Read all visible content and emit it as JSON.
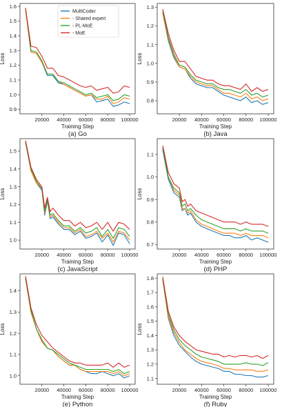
{
  "figure": {
    "legend": {
      "entries": [
        {
          "name": "MultiCoder",
          "color": "#1f77b4"
        },
        {
          "name": "- Shared expert",
          "color": "#ff7f0e"
        },
        {
          "name": "- PL-MoE",
          "color": "#2ca02c"
        },
        {
          "name": "- MoE",
          "color": "#d62728"
        }
      ]
    }
  },
  "chart_data": [
    {
      "type": "line",
      "caption": "(a) Go",
      "xlabel": "Training Step",
      "ylabel": "Loss",
      "xlim": [
        0,
        105000
      ],
      "ylim": [
        0.87,
        1.62
      ],
      "xticks": [
        20000,
        40000,
        60000,
        80000,
        100000
      ],
      "yticks": [
        0.9,
        1.0,
        1.1,
        1.2,
        1.3,
        1.4,
        1.5,
        1.6
      ],
      "x": [
        5000,
        10000,
        15000,
        20000,
        25000,
        30000,
        35000,
        40000,
        45000,
        50000,
        55000,
        60000,
        65000,
        70000,
        75000,
        80000,
        85000,
        90000,
        95000,
        100000
      ],
      "series": [
        {
          "name": "MultiCoder",
          "color": "#1f77b4",
          "values": [
            1.58,
            1.29,
            1.28,
            1.22,
            1.13,
            1.13,
            1.08,
            1.07,
            1.05,
            1.03,
            1.01,
            0.99,
            1.0,
            0.95,
            0.96,
            0.97,
            0.92,
            0.93,
            0.95,
            0.94
          ]
        },
        {
          "name": "- Shared expert",
          "color": "#ff7f0e",
          "values": [
            1.58,
            1.29,
            1.28,
            1.22,
            1.14,
            1.14,
            1.09,
            1.07,
            1.05,
            1.03,
            1.01,
            0.99,
            1.0,
            0.97,
            0.97,
            0.99,
            0.94,
            0.95,
            0.98,
            0.97
          ]
        },
        {
          "name": "- PL-MoE",
          "color": "#2ca02c",
          "values": [
            1.59,
            1.3,
            1.29,
            1.23,
            1.14,
            1.14,
            1.09,
            1.08,
            1.06,
            1.04,
            1.02,
            1.0,
            1.01,
            0.98,
            0.99,
            1.0,
            0.96,
            0.97,
            1.0,
            0.99
          ]
        },
        {
          "name": "- MoE",
          "color": "#d62728",
          "values": [
            1.59,
            1.33,
            1.32,
            1.26,
            1.18,
            1.18,
            1.13,
            1.12,
            1.1,
            1.08,
            1.06,
            1.05,
            1.06,
            1.03,
            1.04,
            1.05,
            1.01,
            1.02,
            1.06,
            1.05
          ]
        }
      ]
    },
    {
      "type": "line",
      "caption": "(b) Java",
      "xlabel": "Training Step",
      "ylabel": "Loss",
      "xlim": [
        0,
        105000
      ],
      "ylim": [
        0.73,
        1.32
      ],
      "xticks": [
        20000,
        40000,
        60000,
        80000,
        100000
      ],
      "yticks": [
        0.8,
        0.9,
        1.0,
        1.1,
        1.2,
        1.3
      ],
      "x": [
        5000,
        10000,
        15000,
        20000,
        25000,
        30000,
        35000,
        40000,
        45000,
        50000,
        55000,
        60000,
        65000,
        70000,
        75000,
        80000,
        85000,
        90000,
        95000,
        100000
      ],
      "series": [
        {
          "name": "MultiCoder",
          "color": "#1f77b4",
          "values": [
            1.27,
            1.12,
            1.03,
            0.98,
            0.97,
            0.92,
            0.89,
            0.88,
            0.87,
            0.87,
            0.85,
            0.83,
            0.82,
            0.81,
            0.8,
            0.82,
            0.79,
            0.8,
            0.78,
            0.79
          ]
        },
        {
          "name": "- Shared expert",
          "color": "#ff7f0e",
          "values": [
            1.27,
            1.13,
            1.04,
            0.98,
            0.97,
            0.93,
            0.9,
            0.89,
            0.88,
            0.88,
            0.86,
            0.84,
            0.84,
            0.83,
            0.82,
            0.84,
            0.81,
            0.82,
            0.8,
            0.81
          ]
        },
        {
          "name": "- PL-MoE",
          "color": "#2ca02c",
          "values": [
            1.28,
            1.14,
            1.05,
            0.99,
            0.98,
            0.94,
            0.91,
            0.9,
            0.89,
            0.89,
            0.87,
            0.86,
            0.86,
            0.85,
            0.84,
            0.86,
            0.83,
            0.84,
            0.82,
            0.83
          ]
        },
        {
          "name": "- MoE",
          "color": "#d62728",
          "values": [
            1.29,
            1.16,
            1.07,
            1.01,
            1.01,
            0.97,
            0.93,
            0.92,
            0.91,
            0.91,
            0.89,
            0.88,
            0.88,
            0.87,
            0.86,
            0.89,
            0.85,
            0.87,
            0.85,
            0.86
          ]
        }
      ]
    },
    {
      "type": "line",
      "caption": "(c) JavaScript",
      "xlabel": "Training Step",
      "ylabel": "Loss",
      "xlim": [
        0,
        105000
      ],
      "ylim": [
        0.95,
        1.57
      ],
      "xticks": [
        20000,
        40000,
        60000,
        80000,
        100000
      ],
      "yticks": [
        1.0,
        1.1,
        1.2,
        1.3,
        1.4,
        1.5
      ],
      "x": [
        5000,
        10000,
        15000,
        20000,
        22500,
        25000,
        27500,
        30000,
        35000,
        40000,
        45000,
        50000,
        55000,
        60000,
        65000,
        70000,
        75000,
        80000,
        85000,
        90000,
        95000,
        100000
      ],
      "series": [
        {
          "name": "MultiCoder",
          "color": "#1f77b4",
          "values": [
            1.55,
            1.39,
            1.32,
            1.28,
            1.14,
            1.22,
            1.12,
            1.13,
            1.09,
            1.06,
            1.06,
            1.03,
            1.05,
            1.01,
            1.02,
            1.04,
            0.99,
            1.03,
            0.97,
            1.04,
            1.03,
            0.98
          ]
        },
        {
          "name": "- Shared expert",
          "color": "#ff7f0e",
          "values": [
            1.55,
            1.39,
            1.32,
            1.29,
            1.15,
            1.23,
            1.13,
            1.14,
            1.1,
            1.07,
            1.07,
            1.04,
            1.06,
            1.02,
            1.03,
            1.05,
            1.01,
            1.04,
            0.99,
            1.05,
            1.04,
            1.0
          ]
        },
        {
          "name": "- PL-MoE",
          "color": "#2ca02c",
          "values": [
            1.55,
            1.4,
            1.33,
            1.29,
            1.16,
            1.23,
            1.14,
            1.15,
            1.11,
            1.08,
            1.08,
            1.05,
            1.07,
            1.04,
            1.05,
            1.07,
            1.02,
            1.06,
            1.01,
            1.07,
            1.06,
            1.02
          ]
        },
        {
          "name": "- MoE",
          "color": "#d62728",
          "values": [
            1.56,
            1.41,
            1.34,
            1.3,
            1.18,
            1.24,
            1.16,
            1.18,
            1.14,
            1.11,
            1.11,
            1.08,
            1.1,
            1.07,
            1.08,
            1.1,
            1.06,
            1.1,
            1.05,
            1.1,
            1.09,
            1.06
          ]
        }
      ]
    },
    {
      "type": "line",
      "caption": "(d) PHP",
      "xlabel": "Training Step",
      "ylabel": "Loss",
      "xlim": [
        0,
        105000
      ],
      "ylim": [
        0.68,
        1.17
      ],
      "xticks": [
        20000,
        40000,
        60000,
        80000,
        100000
      ],
      "yticks": [
        0.7,
        0.8,
        0.9,
        1.0,
        1.1
      ],
      "x": [
        5000,
        10000,
        15000,
        20000,
        22500,
        25000,
        27500,
        30000,
        35000,
        40000,
        45000,
        50000,
        55000,
        60000,
        65000,
        70000,
        75000,
        80000,
        85000,
        90000,
        95000,
        100000
      ],
      "series": [
        {
          "name": "MultiCoder",
          "color": "#1f77b4",
          "values": [
            1.12,
            0.99,
            0.93,
            0.91,
            0.85,
            0.86,
            0.83,
            0.84,
            0.8,
            0.78,
            0.77,
            0.76,
            0.75,
            0.74,
            0.74,
            0.73,
            0.73,
            0.74,
            0.72,
            0.73,
            0.72,
            0.71
          ]
        },
        {
          "name": "- Shared expert",
          "color": "#ff7f0e",
          "values": [
            1.13,
            1.0,
            0.94,
            0.92,
            0.86,
            0.86,
            0.84,
            0.85,
            0.81,
            0.79,
            0.78,
            0.77,
            0.76,
            0.75,
            0.75,
            0.75,
            0.74,
            0.75,
            0.74,
            0.74,
            0.74,
            0.73
          ]
        },
        {
          "name": "- PL-MoE",
          "color": "#2ca02c",
          "values": [
            1.13,
            1.0,
            0.95,
            0.93,
            0.87,
            0.88,
            0.85,
            0.86,
            0.83,
            0.81,
            0.8,
            0.79,
            0.78,
            0.77,
            0.77,
            0.77,
            0.76,
            0.77,
            0.76,
            0.76,
            0.76,
            0.75
          ]
        },
        {
          "name": "- MoE",
          "color": "#d62728",
          "values": [
            1.14,
            1.02,
            0.97,
            0.95,
            0.89,
            0.9,
            0.87,
            0.88,
            0.85,
            0.84,
            0.83,
            0.82,
            0.81,
            0.8,
            0.8,
            0.8,
            0.79,
            0.8,
            0.79,
            0.79,
            0.79,
            0.78
          ]
        }
      ]
    },
    {
      "type": "line",
      "caption": "(e) Python",
      "xlabel": "Training Step",
      "ylabel": "Loss",
      "xlim": [
        0,
        105000
      ],
      "ylim": [
        0.96,
        1.48
      ],
      "xticks": [
        20000,
        40000,
        60000,
        80000,
        100000
      ],
      "yticks": [
        1.0,
        1.1,
        1.2,
        1.3,
        1.4
      ],
      "x": [
        5000,
        10000,
        15000,
        20000,
        25000,
        30000,
        35000,
        40000,
        45000,
        50000,
        55000,
        60000,
        65000,
        70000,
        75000,
        80000,
        85000,
        90000,
        95000,
        100000
      ],
      "series": [
        {
          "name": "MultiCoder",
          "color": "#1f77b4",
          "values": [
            1.46,
            1.3,
            1.22,
            1.16,
            1.13,
            1.12,
            1.09,
            1.07,
            1.05,
            1.05,
            1.03,
            1.02,
            1.01,
            1.01,
            1.02,
            1.01,
            1.0,
            1.01,
            0.99,
            1.0
          ]
        },
        {
          "name": "- Shared expert",
          "color": "#ff7f0e",
          "values": [
            1.46,
            1.3,
            1.22,
            1.16,
            1.13,
            1.12,
            1.09,
            1.07,
            1.05,
            1.05,
            1.03,
            1.02,
            1.02,
            1.02,
            1.02,
            1.02,
            1.01,
            1.02,
            1.0,
            1.01
          ]
        },
        {
          "name": "- PL-MoE",
          "color": "#2ca02c",
          "values": [
            1.46,
            1.31,
            1.22,
            1.17,
            1.13,
            1.12,
            1.1,
            1.08,
            1.06,
            1.05,
            1.04,
            1.03,
            1.03,
            1.03,
            1.03,
            1.03,
            1.02,
            1.03,
            1.01,
            1.02
          ]
        },
        {
          "name": "- MoE",
          "color": "#d62728",
          "values": [
            1.47,
            1.32,
            1.24,
            1.19,
            1.16,
            1.13,
            1.11,
            1.09,
            1.07,
            1.06,
            1.06,
            1.05,
            1.05,
            1.05,
            1.05,
            1.06,
            1.04,
            1.06,
            1.04,
            1.05
          ]
        }
      ]
    },
    {
      "type": "line",
      "caption": "(f) Ruby",
      "xlabel": "Training Step",
      "ylabel": "Loss",
      "xlim": [
        0,
        105000
      ],
      "ylim": [
        1.06,
        1.83
      ],
      "xticks": [
        20000,
        40000,
        60000,
        80000,
        100000
      ],
      "yticks": [
        1.1,
        1.2,
        1.3,
        1.4,
        1.5,
        1.6,
        1.7,
        1.8
      ],
      "x": [
        5000,
        10000,
        15000,
        20000,
        25000,
        30000,
        35000,
        40000,
        45000,
        50000,
        55000,
        60000,
        65000,
        70000,
        75000,
        80000,
        85000,
        90000,
        95000,
        100000
      ],
      "series": [
        {
          "name": "MultiCoder",
          "color": "#1f77b4",
          "values": [
            1.79,
            1.52,
            1.4,
            1.33,
            1.29,
            1.25,
            1.22,
            1.2,
            1.19,
            1.18,
            1.17,
            1.15,
            1.15,
            1.13,
            1.13,
            1.12,
            1.12,
            1.11,
            1.11,
            1.12
          ]
        },
        {
          "name": "- Shared expert",
          "color": "#ff7f0e",
          "values": [
            1.79,
            1.53,
            1.42,
            1.35,
            1.3,
            1.27,
            1.24,
            1.22,
            1.21,
            1.2,
            1.19,
            1.17,
            1.17,
            1.16,
            1.16,
            1.16,
            1.16,
            1.15,
            1.15,
            1.16
          ]
        },
        {
          "name": "- PL-MoE",
          "color": "#2ca02c",
          "values": [
            1.8,
            1.55,
            1.44,
            1.37,
            1.33,
            1.3,
            1.27,
            1.25,
            1.24,
            1.23,
            1.22,
            1.2,
            1.2,
            1.2,
            1.2,
            1.21,
            1.2,
            1.2,
            1.19,
            1.21
          ]
        },
        {
          "name": "- MoE",
          "color": "#d62728",
          "values": [
            1.81,
            1.57,
            1.46,
            1.4,
            1.36,
            1.33,
            1.3,
            1.29,
            1.28,
            1.27,
            1.27,
            1.25,
            1.26,
            1.25,
            1.26,
            1.26,
            1.25,
            1.26,
            1.24,
            1.26
          ]
        }
      ]
    }
  ]
}
